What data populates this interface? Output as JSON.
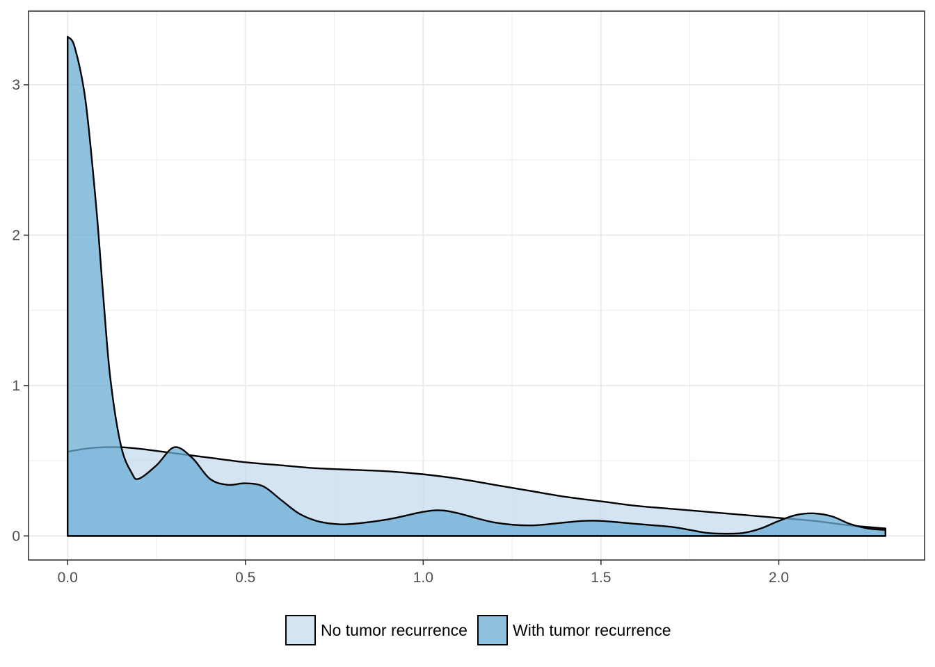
{
  "chart_data": {
    "type": "area",
    "title": "",
    "xlabel": "",
    "ylabel": "",
    "xlim": [
      -0.11,
      2.41
    ],
    "ylim": [
      -0.16,
      3.49
    ],
    "x_ticks": [
      0.0,
      0.5,
      1.0,
      1.5,
      2.0
    ],
    "x_tick_labels": [
      "0.0",
      "0.5",
      "1.0",
      "1.5",
      "2.0"
    ],
    "y_ticks": [
      0,
      1,
      2,
      3
    ],
    "y_tick_labels": [
      "0",
      "1",
      "2",
      "3"
    ],
    "grid": true,
    "legend_position": "bottom",
    "series": [
      {
        "name": "No tumor recurrence",
        "color": "#c6dbef",
        "x": [
          0.0,
          0.05,
          0.1,
          0.15,
          0.2,
          0.3,
          0.4,
          0.5,
          0.6,
          0.7,
          0.8,
          0.9,
          1.0,
          1.1,
          1.2,
          1.3,
          1.4,
          1.5,
          1.6,
          1.7,
          1.8,
          1.9,
          2.0,
          2.1,
          2.2,
          2.3
        ],
        "values": [
          0.56,
          0.58,
          0.59,
          0.59,
          0.58,
          0.55,
          0.52,
          0.49,
          0.47,
          0.45,
          0.44,
          0.43,
          0.41,
          0.38,
          0.34,
          0.3,
          0.26,
          0.23,
          0.2,
          0.18,
          0.16,
          0.14,
          0.12,
          0.1,
          0.07,
          0.05
        ]
      },
      {
        "name": "With tumor recurrence",
        "color": "#6baed6",
        "x": [
          0.0,
          0.02,
          0.05,
          0.08,
          0.1,
          0.12,
          0.15,
          0.18,
          0.2,
          0.25,
          0.3,
          0.35,
          0.4,
          0.45,
          0.5,
          0.55,
          0.6,
          0.65,
          0.7,
          0.75,
          0.8,
          0.9,
          1.0,
          1.05,
          1.1,
          1.2,
          1.3,
          1.4,
          1.45,
          1.5,
          1.6,
          1.7,
          1.75,
          1.8,
          1.85,
          1.9,
          1.95,
          2.0,
          2.05,
          2.1,
          2.15,
          2.2,
          2.25,
          2.3
        ],
        "values": [
          3.32,
          3.25,
          2.9,
          2.2,
          1.6,
          1.05,
          0.6,
          0.42,
          0.38,
          0.47,
          0.59,
          0.52,
          0.38,
          0.34,
          0.35,
          0.33,
          0.24,
          0.15,
          0.1,
          0.08,
          0.08,
          0.11,
          0.16,
          0.17,
          0.15,
          0.09,
          0.07,
          0.09,
          0.1,
          0.1,
          0.08,
          0.06,
          0.04,
          0.02,
          0.015,
          0.02,
          0.05,
          0.1,
          0.14,
          0.15,
          0.13,
          0.08,
          0.05,
          0.04
        ]
      }
    ]
  }
}
